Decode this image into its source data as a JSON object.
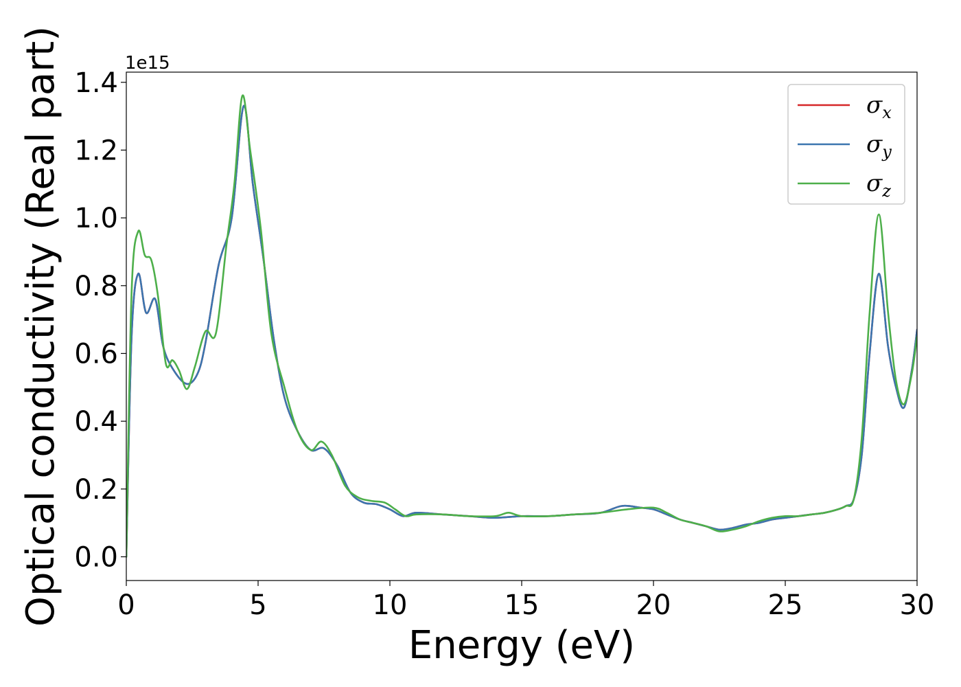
{
  "chart_data": {
    "type": "line",
    "xlabel": "Energy (eV)",
    "ylabel": "Optical conductivity (Real part)",
    "y_offset_label": "1e15",
    "xlim": [
      0,
      30
    ],
    "ylim": [
      -0.07,
      1.43
    ],
    "xticks": [
      0,
      5,
      10,
      15,
      20,
      25,
      30
    ],
    "xtick_labels": [
      "0",
      "5",
      "10",
      "15",
      "20",
      "25",
      "30"
    ],
    "yticks": [
      0.0,
      0.2,
      0.4,
      0.6,
      0.8,
      1.0,
      1.2,
      1.4
    ],
    "ytick_labels": [
      "0.0",
      "0.2",
      "0.4",
      "0.6",
      "0.8",
      "1.0",
      "1.2",
      "1.4"
    ],
    "grid": false,
    "legend_position": "top-right",
    "series": [
      {
        "name": "σx",
        "symbol": "σ",
        "subscript": "x",
        "color": "#d62728",
        "x": [
          0,
          0.2,
          0.45,
          0.75,
          1.1,
          1.4,
          1.8,
          2.3,
          2.7,
          3.0,
          3.5,
          4.0,
          4.45,
          4.8,
          5.2,
          5.6,
          6.0,
          6.5,
          7.0,
          7.5,
          8.0,
          8.5,
          9.0,
          9.5,
          10.0,
          10.5,
          11.0,
          12.0,
          13.0,
          14.0,
          15.0,
          16.0,
          17.0,
          18.0,
          18.8,
          19.5,
          20.0,
          20.5,
          21.0,
          21.5,
          22.0,
          22.5,
          23.0,
          23.5,
          24.0,
          24.5,
          25.0,
          25.5,
          26.0,
          26.5,
          27.0,
          27.3,
          27.6,
          27.9,
          28.2,
          28.55,
          28.9,
          29.2,
          29.5,
          29.8,
          30.0
        ],
        "y": [
          0.0,
          0.65,
          0.835,
          0.72,
          0.76,
          0.62,
          0.55,
          0.51,
          0.54,
          0.63,
          0.86,
          1.0,
          1.33,
          1.1,
          0.88,
          0.64,
          0.47,
          0.37,
          0.315,
          0.32,
          0.27,
          0.19,
          0.16,
          0.155,
          0.14,
          0.12,
          0.13,
          0.125,
          0.12,
          0.115,
          0.12,
          0.12,
          0.125,
          0.13,
          0.15,
          0.145,
          0.14,
          0.125,
          0.11,
          0.1,
          0.09,
          0.08,
          0.085,
          0.095,
          0.1,
          0.11,
          0.115,
          0.12,
          0.125,
          0.13,
          0.14,
          0.15,
          0.17,
          0.3,
          0.6,
          0.835,
          0.62,
          0.5,
          0.44,
          0.55,
          0.67
        ]
      },
      {
        "name": "σy",
        "symbol": "σ",
        "subscript": "y",
        "color": "#3b75af",
        "x": [
          0,
          0.2,
          0.45,
          0.75,
          1.1,
          1.4,
          1.8,
          2.3,
          2.7,
          3.0,
          3.5,
          4.0,
          4.45,
          4.8,
          5.2,
          5.6,
          6.0,
          6.5,
          7.0,
          7.5,
          8.0,
          8.5,
          9.0,
          9.5,
          10.0,
          10.5,
          11.0,
          12.0,
          13.0,
          14.0,
          15.0,
          16.0,
          17.0,
          18.0,
          18.8,
          19.5,
          20.0,
          20.5,
          21.0,
          21.5,
          22.0,
          22.5,
          23.0,
          23.5,
          24.0,
          24.5,
          25.0,
          25.5,
          26.0,
          26.5,
          27.0,
          27.3,
          27.6,
          27.9,
          28.2,
          28.55,
          28.9,
          29.2,
          29.5,
          29.8,
          30.0
        ],
        "y": [
          0.0,
          0.65,
          0.835,
          0.72,
          0.76,
          0.62,
          0.55,
          0.51,
          0.54,
          0.63,
          0.86,
          1.0,
          1.33,
          1.1,
          0.88,
          0.64,
          0.47,
          0.37,
          0.315,
          0.32,
          0.27,
          0.19,
          0.16,
          0.155,
          0.14,
          0.12,
          0.13,
          0.125,
          0.12,
          0.115,
          0.12,
          0.12,
          0.125,
          0.13,
          0.15,
          0.145,
          0.14,
          0.125,
          0.11,
          0.1,
          0.09,
          0.08,
          0.085,
          0.095,
          0.1,
          0.11,
          0.115,
          0.12,
          0.125,
          0.13,
          0.14,
          0.15,
          0.17,
          0.3,
          0.6,
          0.835,
          0.62,
          0.5,
          0.44,
          0.55,
          0.67
        ]
      },
      {
        "name": "σz",
        "symbol": "σ",
        "subscript": "z",
        "color": "#4daf4a",
        "x": [
          0,
          0.2,
          0.45,
          0.7,
          0.95,
          1.2,
          1.5,
          1.75,
          2.0,
          2.3,
          2.6,
          3.0,
          3.4,
          3.8,
          4.1,
          4.4,
          4.7,
          5.1,
          5.5,
          6.0,
          6.5,
          7.0,
          7.4,
          7.8,
          8.3,
          8.8,
          9.3,
          9.8,
          10.2,
          10.6,
          11.0,
          12.0,
          13.0,
          14.0,
          14.5,
          15.0,
          16.0,
          17.0,
          18.0,
          19.0,
          20.0,
          20.5,
          21.0,
          21.5,
          22.0,
          22.5,
          23.0,
          23.5,
          24.0,
          24.5,
          25.0,
          25.5,
          26.0,
          26.5,
          27.0,
          27.3,
          27.6,
          27.9,
          28.2,
          28.55,
          28.9,
          29.2,
          29.5,
          29.8,
          30.0
        ],
        "y": [
          0.0,
          0.78,
          0.96,
          0.89,
          0.875,
          0.77,
          0.57,
          0.58,
          0.55,
          0.495,
          0.56,
          0.665,
          0.66,
          0.92,
          1.1,
          1.36,
          1.2,
          0.97,
          0.66,
          0.5,
          0.37,
          0.315,
          0.34,
          0.3,
          0.21,
          0.175,
          0.165,
          0.16,
          0.14,
          0.12,
          0.125,
          0.125,
          0.12,
          0.12,
          0.13,
          0.12,
          0.12,
          0.125,
          0.13,
          0.14,
          0.145,
          0.13,
          0.11,
          0.1,
          0.09,
          0.075,
          0.08,
          0.09,
          0.105,
          0.115,
          0.12,
          0.12,
          0.125,
          0.13,
          0.14,
          0.15,
          0.17,
          0.35,
          0.72,
          1.01,
          0.72,
          0.52,
          0.45,
          0.54,
          0.65
        ]
      }
    ]
  }
}
